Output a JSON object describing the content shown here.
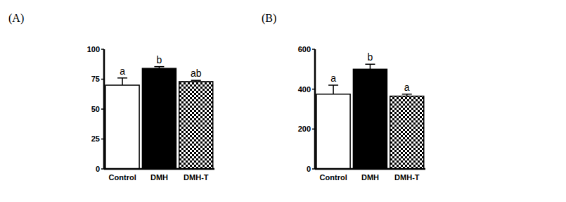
{
  "chart_data": [
    {
      "type": "bar",
      "title": "(A)",
      "categories": [
        "Control",
        "DMH",
        "DMH-T"
      ],
      "values": [
        70,
        84,
        73
      ],
      "errors": [
        6,
        1.5,
        1
      ],
      "annotations": [
        "a",
        "b",
        "ab"
      ],
      "colors": [
        "#ffffff",
        "#000000",
        "#000000"
      ],
      "ylim": [
        0,
        100
      ],
      "yticks": [
        0,
        25,
        50,
        75,
        100
      ]
    },
    {
      "type": "bar",
      "title": "(B)",
      "categories": [
        "Control",
        "DMH",
        "DMH-T"
      ],
      "values": [
        375,
        500,
        365
      ],
      "errors": [
        45,
        25,
        10
      ],
      "annotations": [
        "a",
        "b",
        "a"
      ],
      "colors": [
        "#ffffff",
        "#000000",
        "#000000"
      ],
      "ylim": [
        0,
        600
      ],
      "yticks": [
        0,
        200,
        400,
        600
      ]
    }
  ]
}
